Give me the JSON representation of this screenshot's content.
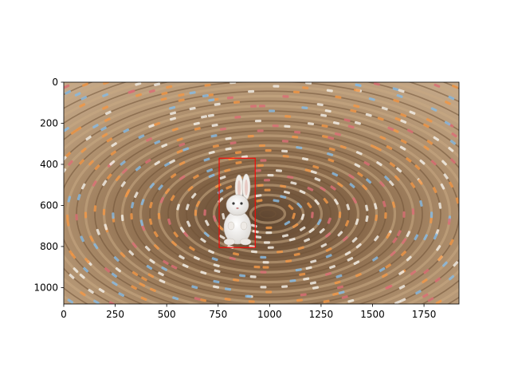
{
  "chart_data": {
    "type": "image",
    "image_size": {
      "width": 1920,
      "height": 1080
    },
    "image_description": "woven seagrass coaster with colored stripes and a small white bunny figurine",
    "xlim": [
      0,
      1920
    ],
    "ylim": [
      1080,
      0
    ],
    "x_ticks": [
      0,
      250,
      500,
      750,
      1000,
      1250,
      1500,
      1750
    ],
    "y_ticks": [
      0,
      200,
      400,
      600,
      800,
      1000
    ],
    "annotations": [
      {
        "type": "rectangle",
        "x0": 755,
        "y0": 370,
        "x1": 930,
        "y1": 805,
        "color": "#ff0000"
      }
    ],
    "grid": false
  },
  "colors": {
    "axes": "#000000",
    "box": "#ff0000",
    "straw_light": "#c8a983",
    "straw_dark": "#6f5237",
    "stripe_orange": "#ef9748",
    "stripe_blue": "#87b9df",
    "stripe_white": "#f1ece4",
    "stripe_pink": "#d86e74"
  }
}
